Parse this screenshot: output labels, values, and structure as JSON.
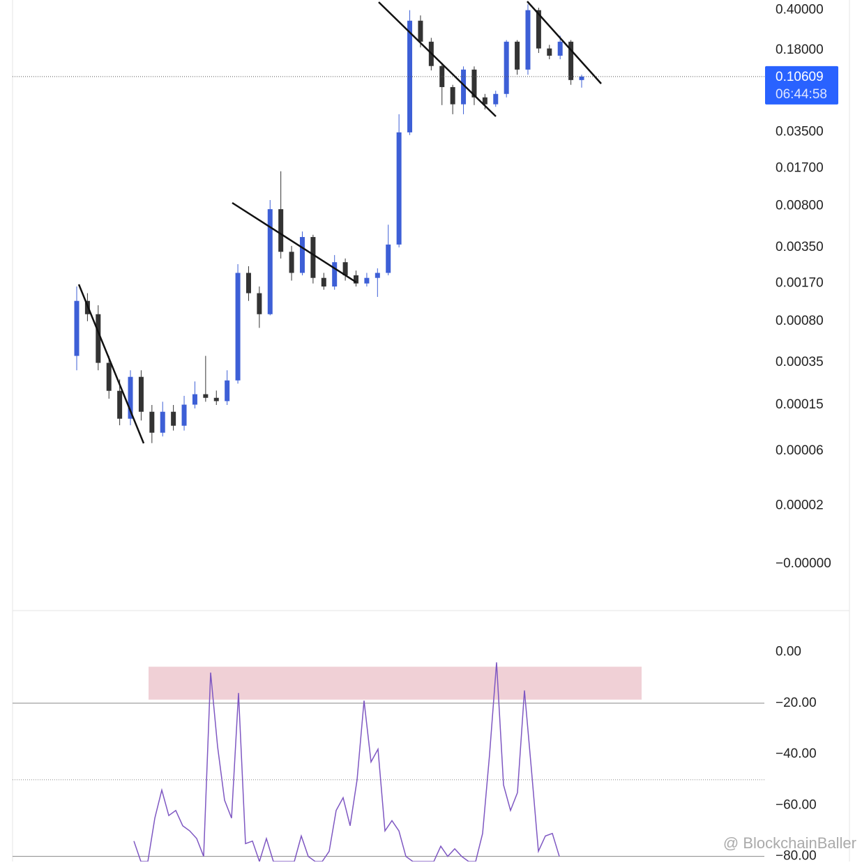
{
  "chart_data": [
    {
      "type": "candlestick",
      "log_scale": true,
      "open": [
        0.0004,
        0.0012,
        0.00092,
        0.000348,
        0.000199,
        0.000114,
        0.000263,
        0.000131,
        8.62e-05,
        0.000131,
        9.91e-05,
        0.000151,
        0.000186,
        0.000173,
        0.000162,
        0.000245,
        0.0021,
        0.0014,
        0.00092,
        0.0075,
        0.0032,
        0.0021,
        0.0043,
        0.0019,
        0.0016,
        0.0026,
        0.002,
        0.0017,
        0.0019,
        0.0021,
        0.0037,
        0.0348,
        0.324,
        0.213,
        0.131,
        0.086,
        0.061,
        0.122,
        0.07,
        0.061,
        0.075,
        0.213,
        0.122,
        0.4,
        0.186,
        0.161,
        0.213,
        0.099
      ],
      "high": [
        0.0016,
        0.0014,
        0.0011,
        0.0004,
        0.00025,
        0.0003,
        0.0003,
        0.00015,
        0.00016,
        0.00015,
        0.00018,
        0.00024,
        0.0004,
        0.0002,
        0.0003,
        0.0025,
        0.0024,
        0.0016,
        0.009,
        0.016,
        0.0036,
        0.0048,
        0.0045,
        0.0021,
        0.003,
        0.0028,
        0.0022,
        0.0021,
        0.0023,
        0.0055,
        0.05,
        0.4,
        0.36,
        0.23,
        0.14,
        0.09,
        0.13,
        0.13,
        0.075,
        0.08,
        0.22,
        0.22,
        0.45,
        0.42,
        0.2,
        0.24,
        0.22,
        0.11
      ],
      "low": [
        0.0003,
        0.0008,
        0.0003,
        0.00017,
        0.0001,
        0.0001,
        0.00011,
        7e-05,
        8e-05,
        9e-05,
        9e-05,
        0.00014,
        0.00016,
        0.00015,
        0.00015,
        0.00023,
        0.0012,
        0.0007,
        0.0009,
        0.0028,
        0.0018,
        0.002,
        0.0017,
        0.0015,
        0.0015,
        0.0018,
        0.0016,
        0.0016,
        0.0013,
        0.002,
        0.0035,
        0.033,
        0.19,
        0.12,
        0.06,
        0.05,
        0.05,
        0.06,
        0.055,
        0.058,
        0.07,
        0.11,
        0.11,
        0.17,
        0.15,
        0.15,
        0.09,
        0.085
      ],
      "close": [
        0.0012,
        0.00092,
        0.000348,
        0.000199,
        0.000114,
        0.000263,
        0.000131,
        8.62e-05,
        0.000131,
        9.91e-05,
        0.000151,
        0.000186,
        0.000173,
        0.000162,
        0.000245,
        0.0021,
        0.0014,
        0.00092,
        0.0075,
        0.0032,
        0.0021,
        0.0043,
        0.0019,
        0.0016,
        0.0026,
        0.002,
        0.0017,
        0.0019,
        0.0021,
        0.0037,
        0.0348,
        0.324,
        0.213,
        0.131,
        0.086,
        0.061,
        0.122,
        0.07,
        0.061,
        0.075,
        0.213,
        0.122,
        0.4,
        0.186,
        0.161,
        0.213,
        0.099,
        0.10609
      ],
      "up_color": "#3d5fd6",
      "down_color": "#333333",
      "ylim": [
        2.5e-06,
        0.49
      ],
      "yticks": [
        {
          "value": 0.4,
          "label": "0.40000"
        },
        {
          "value": 0.18,
          "label": "0.18000"
        },
        {
          "value": 0.035,
          "label": "0.03500"
        },
        {
          "value": 0.017,
          "label": "0.01700"
        },
        {
          "value": 0.008,
          "label": "0.00800"
        },
        {
          "value": 0.0035,
          "label": "0.00350"
        },
        {
          "value": 0.0017,
          "label": "0.00170"
        },
        {
          "value": 0.0008,
          "label": "0.00080"
        },
        {
          "value": 0.00035,
          "label": "0.00035"
        },
        {
          "value": 0.00015,
          "label": "0.00015"
        },
        {
          "value": 6e-05,
          "label": "0.00006"
        },
        {
          "value": 2e-05,
          "label": "0.00002"
        },
        {
          "value": 0,
          "label": "−0.00000"
        }
      ],
      "last_price": {
        "value": 0.10609,
        "label": "0.10609",
        "countdown": "06:44:58",
        "color": "#2962ff"
      }
    },
    {
      "type": "line",
      "color": "#7e57c2",
      "values": [
        -74,
        -82,
        -82,
        -65,
        -54,
        -64,
        -62,
        -68,
        -70,
        -73,
        -80,
        -8,
        -37,
        -58,
        -65,
        -16,
        -75,
        -74,
        -82,
        -73,
        -82,
        -82,
        -82,
        -82,
        -72,
        -80,
        -82,
        -82,
        -78,
        -62,
        -57,
        -68,
        -50,
        -19,
        -43,
        -38,
        -70,
        -66,
        -70,
        -80,
        -82,
        -82,
        -82,
        -82,
        -76,
        -80,
        -77,
        -80,
        -82,
        -82,
        -71,
        -40,
        -4,
        -52,
        -62,
        -55,
        -15,
        -46,
        -78,
        -72,
        -71,
        -80
      ],
      "ylim": [
        -82,
        16
      ],
      "yticks": [
        {
          "value": 0,
          "label": "0.00"
        },
        {
          "value": -20,
          "label": "−20.00"
        },
        {
          "value": -40,
          "label": "−40.00"
        },
        {
          "value": -60,
          "label": "−60.00"
        },
        {
          "value": -80,
          "label": "−80.00"
        }
      ],
      "levels": [
        -20,
        -50,
        -80
      ],
      "zone": {
        "from": -18.6,
        "to": -5.7,
        "color": "#f0d0d6"
      },
      "watermark": "@ BlockchainBaller"
    }
  ]
}
